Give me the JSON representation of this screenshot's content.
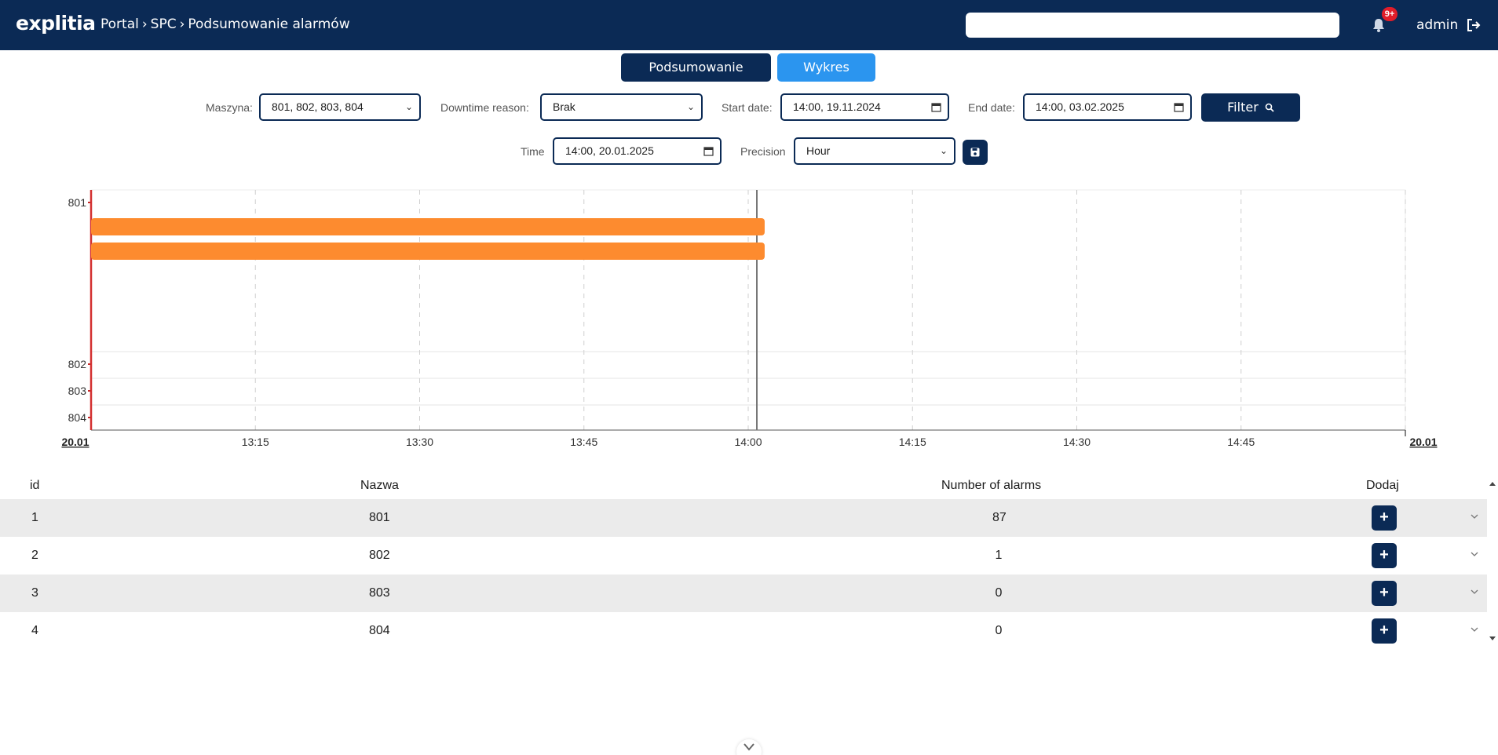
{
  "header": {
    "logo": "explitia",
    "breadcrumb": [
      "Portal",
      "SPC",
      "Podsumowanie alarmów"
    ],
    "search_value": "",
    "notifications_badge": "9+",
    "user": "admin",
    "colors": {
      "bar": "#0b2a55",
      "badge": "#e11d2a"
    }
  },
  "tabs": [
    {
      "label": "Podsumowanie",
      "active": false
    },
    {
      "label": "Wykres",
      "active": true
    }
  ],
  "filters": {
    "machine": {
      "label": "Maszyna:",
      "value": "801, 802, 803, 804"
    },
    "downtime_reason": {
      "label": "Downtime reason:",
      "value": "Brak"
    },
    "start_date": {
      "label": "Start date:",
      "value": "14:00, 19.11.2024"
    },
    "end_date": {
      "label": "End date:",
      "value": "14:00, 03.02.2025"
    },
    "filter_button": "Filter",
    "time": {
      "label": "Time",
      "value": "14:00, 20.01.2025"
    },
    "precision": {
      "label": "Precision",
      "value": "Hour"
    }
  },
  "chart_data": {
    "type": "timeline",
    "y_categories": [
      "801",
      "802",
      "803",
      "804"
    ],
    "x_ticks": [
      "13:15",
      "13:30",
      "13:45",
      "14:00",
      "14:15",
      "14:30",
      "14:45"
    ],
    "x_start_label": "20.01",
    "x_end_label": "20.01",
    "x_range": [
      "13:00",
      "15:00"
    ],
    "current_time": "14:00",
    "bars": [
      {
        "category": "801",
        "start": "13:00",
        "end": "14:01",
        "color": "#fd8b2f"
      },
      {
        "category": "801",
        "start": "13:00",
        "end": "14:01",
        "color": "#fd8b2f"
      }
    ],
    "grid": true
  },
  "table": {
    "columns": [
      "id",
      "Nazwa",
      "Number of alarms",
      "Dodaj"
    ],
    "rows": [
      {
        "id": "1",
        "name": "801",
        "alarms": "87"
      },
      {
        "id": "2",
        "name": "802",
        "alarms": "1"
      },
      {
        "id": "3",
        "name": "803",
        "alarms": "0"
      },
      {
        "id": "4",
        "name": "804",
        "alarms": "0"
      }
    ],
    "add_label": "+"
  }
}
